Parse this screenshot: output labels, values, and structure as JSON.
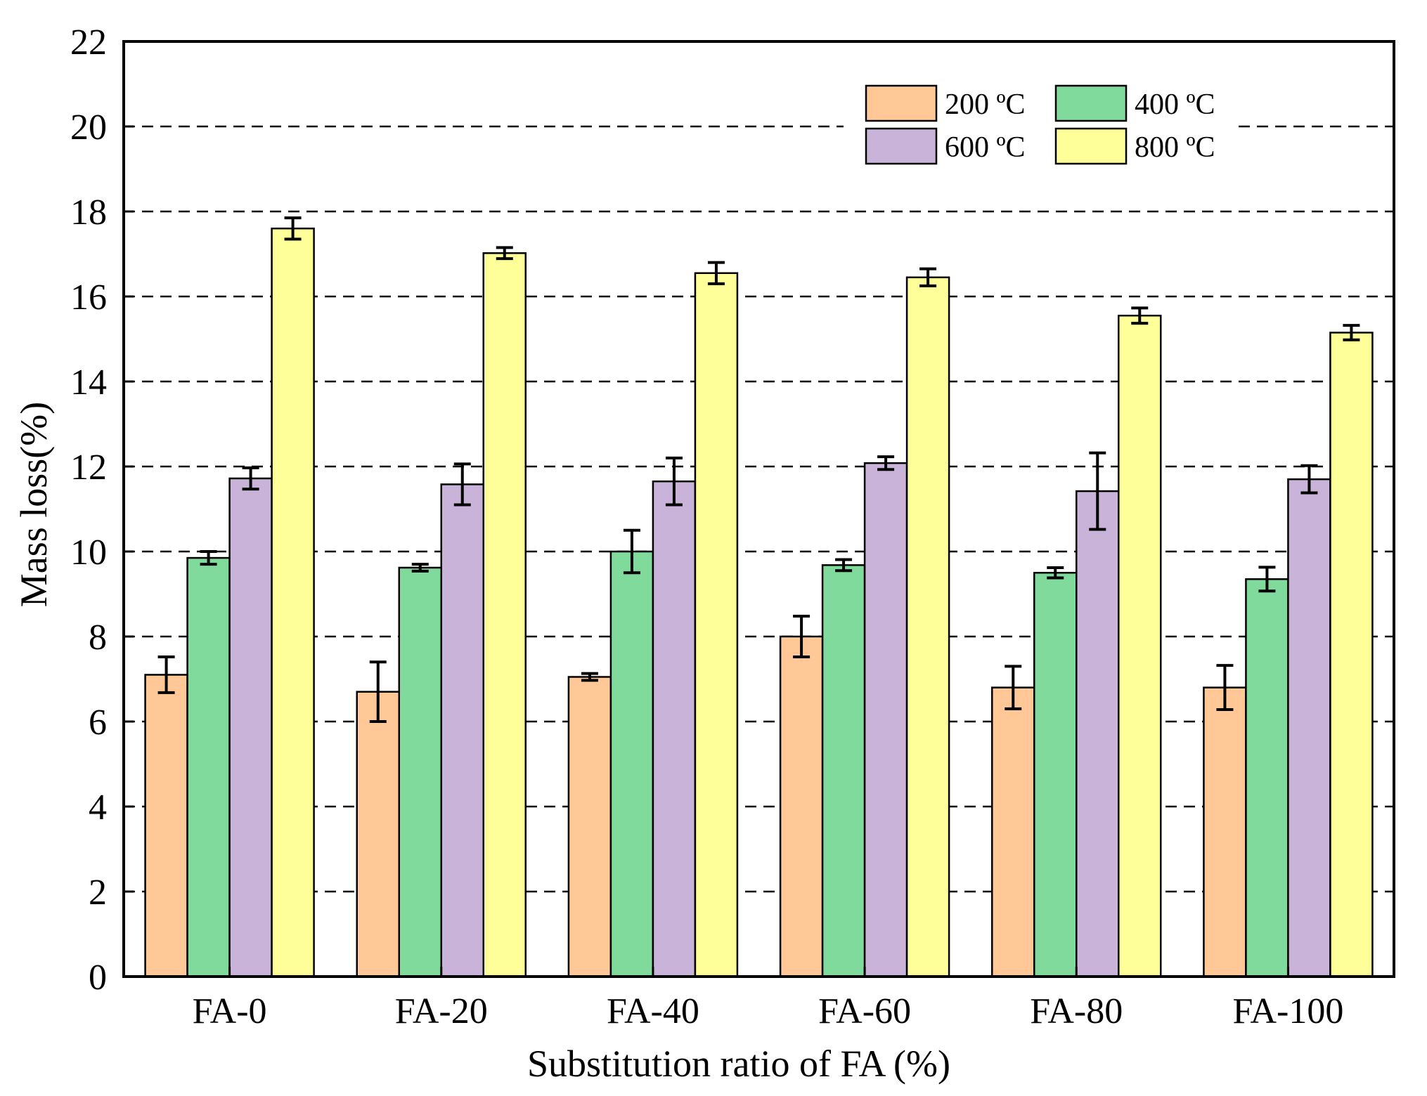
{
  "chart_data": {
    "type": "bar",
    "title": "",
    "xlabel": "Substitution ratio of FA (%)",
    "ylabel": "Mass loss(%)",
    "ylim": [
      0,
      22
    ],
    "yticks": [
      0,
      2,
      4,
      6,
      8,
      10,
      12,
      14,
      16,
      18,
      20,
      22
    ],
    "grid": "horizontal dashed",
    "legend_position": "top-right",
    "categories": [
      "FA-0",
      "FA-20",
      "FA-40",
      "FA-60",
      "FA-80",
      "FA-100"
    ],
    "series": [
      {
        "name": "200 ºC",
        "color": "#FFC896",
        "values": [
          7.1,
          6.7,
          7.05,
          8.0,
          6.8,
          6.8
        ],
        "errors": [
          0.42,
          0.7,
          0.08,
          0.48,
          0.5,
          0.52
        ]
      },
      {
        "name": "400 ºC",
        "color": "#80DA9C",
        "values": [
          9.85,
          9.62,
          10.0,
          9.68,
          9.5,
          9.35
        ],
        "errors": [
          0.15,
          0.08,
          0.5,
          0.13,
          0.12,
          0.28
        ]
      },
      {
        "name": "600 ºC",
        "color": "#C9B3D8",
        "values": [
          11.72,
          11.58,
          11.65,
          12.08,
          11.42,
          11.7
        ],
        "errors": [
          0.25,
          0.48,
          0.55,
          0.15,
          0.9,
          0.32
        ]
      },
      {
        "name": "800 ºC",
        "color": "#FFFF99",
        "values": [
          17.6,
          17.02,
          16.55,
          16.45,
          15.55,
          15.15
        ],
        "errors": [
          0.25,
          0.13,
          0.25,
          0.2,
          0.18,
          0.17
        ]
      }
    ]
  }
}
